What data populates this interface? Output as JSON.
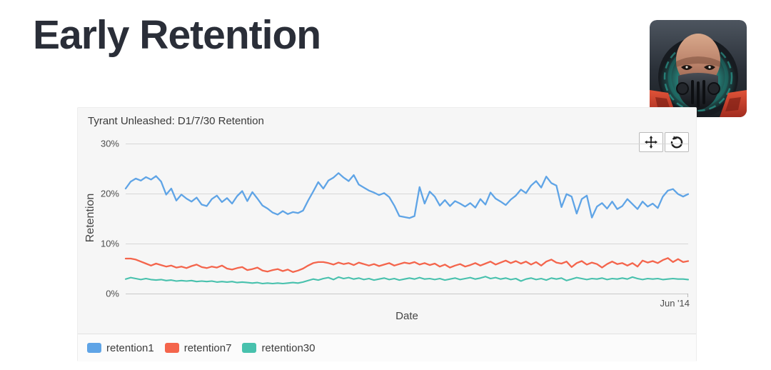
{
  "page": {
    "title": "Early Retention"
  },
  "app_icon": {
    "name": "Tyrant Unleashed game icon"
  },
  "toolbar": {
    "buttons": [
      {
        "icon": "pan-arrows-icon"
      },
      {
        "icon": "reset-rotate-ccw-icon"
      }
    ]
  },
  "chart_data": {
    "type": "line",
    "title": "Tyrant Unleashed: D1/7/30 Retention",
    "xlabel": "Date",
    "ylabel": "Retention",
    "x_last_tick_label": "Jun '14",
    "ylim": [
      0,
      30
    ],
    "y_tick_labels": [
      "30%",
      "20%",
      "10%",
      "0%"
    ],
    "grid": "horizontal",
    "legend_position": "bottom-left",
    "unit": "%",
    "series": [
      {
        "name": "retention1",
        "color": "#5fa4e6",
        "values": [
          21.0,
          22.4,
          23.0,
          22.6,
          23.3,
          22.8,
          23.5,
          22.4,
          19.8,
          21.0,
          18.6,
          19.8,
          19.0,
          18.4,
          19.2,
          17.8,
          17.5,
          18.9,
          19.6,
          18.3,
          19.1,
          18.0,
          19.5,
          20.5,
          18.5,
          20.3,
          19.0,
          17.6,
          17.0,
          16.2,
          15.8,
          16.5,
          15.9,
          16.3,
          16.1,
          16.6,
          18.6,
          20.4,
          22.3,
          21.0,
          22.6,
          23.2,
          24.1,
          23.2,
          22.5,
          23.7,
          21.8,
          21.2,
          20.6,
          20.2,
          19.7,
          20.1,
          19.3,
          17.6,
          15.5,
          15.3,
          15.1,
          15.5,
          21.3,
          18.0,
          20.4,
          19.4,
          17.6,
          18.7,
          17.5,
          18.5,
          18.0,
          17.4,
          18.1,
          17.2,
          18.9,
          17.8,
          20.2,
          19.0,
          18.4,
          17.7,
          18.8,
          19.6,
          20.8,
          20.1,
          21.6,
          22.5,
          21.2,
          23.4,
          22.1,
          21.6,
          17.3,
          19.9,
          19.4,
          16.0,
          18.9,
          19.6,
          15.2,
          17.4,
          18.1,
          17.0,
          18.4,
          16.9,
          17.5,
          18.9,
          17.9,
          16.9,
          18.4,
          17.4,
          18.0,
          17.1,
          19.4,
          20.6,
          20.9,
          19.9,
          19.4,
          19.9
        ]
      },
      {
        "name": "retention7",
        "color": "#f4654c",
        "values": [
          7.0,
          7.0,
          6.8,
          6.4,
          6.0,
          5.6,
          6.0,
          5.7,
          5.4,
          5.6,
          5.2,
          5.4,
          5.1,
          5.5,
          5.8,
          5.3,
          5.1,
          5.4,
          5.2,
          5.6,
          5.0,
          4.8,
          5.1,
          5.3,
          4.7,
          4.9,
          5.2,
          4.6,
          4.4,
          4.7,
          4.9,
          4.5,
          4.8,
          4.3,
          4.6,
          5.0,
          5.6,
          6.1,
          6.3,
          6.3,
          6.1,
          5.8,
          6.2,
          5.9,
          6.1,
          5.7,
          6.2,
          5.9,
          5.6,
          5.9,
          5.5,
          5.8,
          6.1,
          5.6,
          5.9,
          6.2,
          6.0,
          6.3,
          5.8,
          6.1,
          5.7,
          6.0,
          5.4,
          5.8,
          5.2,
          5.6,
          5.9,
          5.4,
          5.7,
          6.1,
          5.6,
          6.0,
          6.4,
          5.8,
          6.2,
          6.6,
          6.1,
          6.5,
          6.0,
          6.4,
          5.8,
          6.3,
          5.6,
          6.4,
          6.8,
          6.2,
          6.0,
          6.4,
          5.3,
          6.1,
          6.5,
          5.8,
          6.2,
          5.9,
          5.2,
          5.9,
          6.4,
          5.9,
          6.1,
          5.6,
          6.1,
          5.4,
          6.6,
          6.2,
          6.5,
          6.1,
          6.7,
          7.1,
          6.3,
          6.9,
          6.3,
          6.5
        ]
      },
      {
        "name": "retention30",
        "color": "#48c1ad",
        "values": [
          2.9,
          3.2,
          3.0,
          2.8,
          3.0,
          2.8,
          2.7,
          2.8,
          2.6,
          2.7,
          2.5,
          2.6,
          2.5,
          2.6,
          2.4,
          2.5,
          2.4,
          2.5,
          2.3,
          2.4,
          2.3,
          2.4,
          2.2,
          2.3,
          2.2,
          2.1,
          2.2,
          2.0,
          2.1,
          2.0,
          2.1,
          2.0,
          2.1,
          2.2,
          2.1,
          2.3,
          2.6,
          2.9,
          2.7,
          3.0,
          3.2,
          2.8,
          3.3,
          3.0,
          3.2,
          2.9,
          3.1,
          2.8,
          3.0,
          2.7,
          2.9,
          3.1,
          2.8,
          3.0,
          2.7,
          2.9,
          3.1,
          2.9,
          3.2,
          2.9,
          3.0,
          2.8,
          3.0,
          2.7,
          2.9,
          3.1,
          2.8,
          3.0,
          3.2,
          2.9,
          3.1,
          3.4,
          3.0,
          3.2,
          2.9,
          3.1,
          2.8,
          3.0,
          2.5,
          2.9,
          3.1,
          2.8,
          3.0,
          2.7,
          3.1,
          2.9,
          3.1,
          2.6,
          2.9,
          3.2,
          3.0,
          2.8,
          3.0,
          2.9,
          3.1,
          2.8,
          3.0,
          2.9,
          3.1,
          2.9,
          3.3,
          3.0,
          2.8,
          3.0,
          2.9,
          3.0,
          2.8,
          2.9,
          3.0,
          2.9,
          2.9,
          2.8
        ]
      }
    ]
  }
}
